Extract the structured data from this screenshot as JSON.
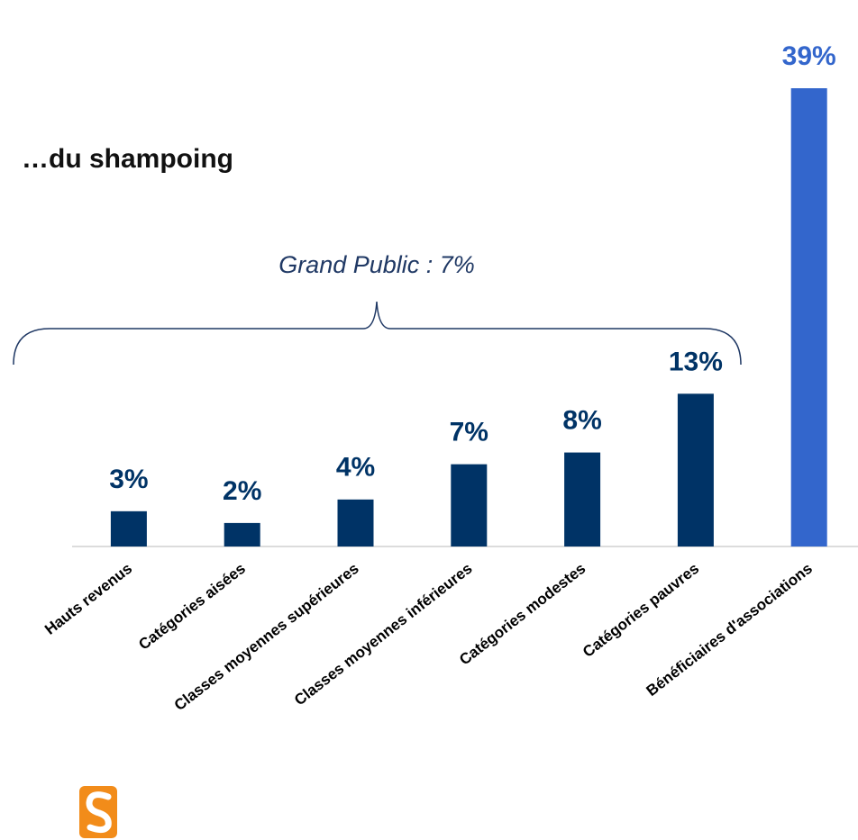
{
  "chart_data": {
    "type": "bar",
    "title": "…du shampoing",
    "annotation": "Grand Public : 7%",
    "categories": [
      "Hauts revenus",
      "Catégories aisées",
      "Classes moyennes supérieures",
      "Classes moyennes inférieures",
      "Catégories modestes",
      "Catégories pauvres",
      "Bénéficiaires d'associations"
    ],
    "values": [
      3,
      2,
      4,
      7,
      8,
      13,
      39
    ],
    "value_labels": [
      "3%",
      "2%",
      "4%",
      "7%",
      "8%",
      "13%",
      "39%"
    ],
    "colors": [
      "#003366",
      "#003366",
      "#003366",
      "#003366",
      "#003366",
      "#003366",
      "#3366cc"
    ]
  }
}
